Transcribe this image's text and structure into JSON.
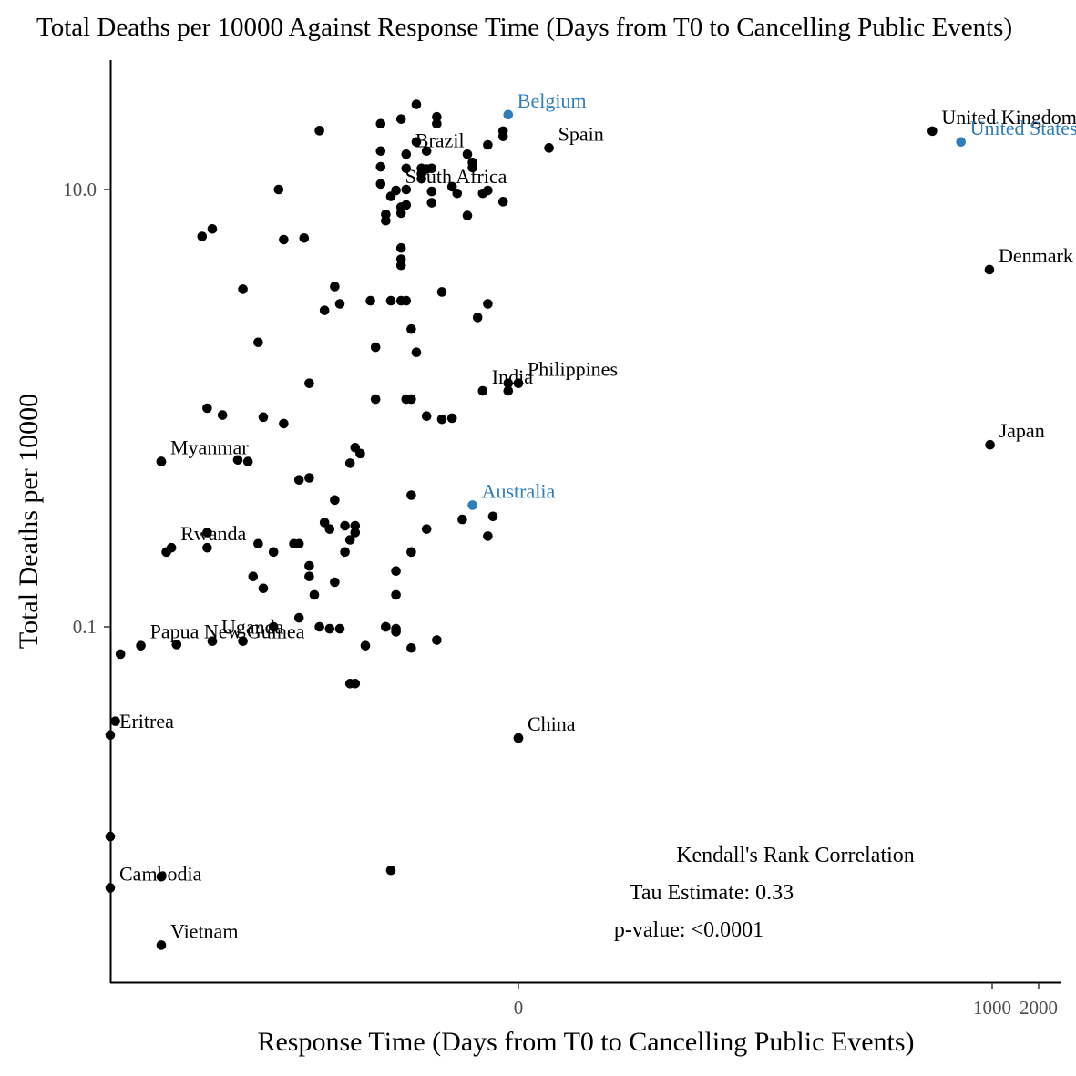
{
  "chart_data": {
    "type": "scatter",
    "title": "Total Deaths per 10000 Against Response Time (Days from T0 to Cancelling Public Events)",
    "xlabel": "Response Time (Days from T0 to Cancelling Public Events)",
    "ylabel": "Total Deaths per 10000",
    "x_scale": "pseudo-log",
    "y_scale": "log10",
    "x_tick_labels": [
      "0",
      "1000",
      "2000"
    ],
    "x_ticks": [
      0,
      1000,
      2000
    ],
    "y_tick_labels": [
      "10.0",
      "0.1"
    ],
    "y_ticks": [
      10.0,
      0.1
    ],
    "xlim": [
      -80,
      2100
    ],
    "ylim": [
      0.0012,
      45
    ],
    "grid": false,
    "legend": "none",
    "colors": {
      "default": "#000000",
      "highlight": "#2e7ebc"
    },
    "points": [
      {
        "x": -80,
        "y": 0.011
      },
      {
        "x": -79,
        "y": 0.037
      },
      {
        "x": -78,
        "y": 0.075
      },
      {
        "x": -70,
        "y": 0.57
      },
      {
        "x": -70,
        "y": 0.0072
      },
      {
        "x": -69,
        "y": 0.22
      },
      {
        "x": -67,
        "y": 0.083
      },
      {
        "x": -62,
        "y": 6.1
      },
      {
        "x": -61,
        "y": 0.27
      },
      {
        "x": -61,
        "y": 0.23
      },
      {
        "x": -61,
        "y": 1.0
      },
      {
        "x": -60,
        "y": 6.6
      },
      {
        "x": -58,
        "y": 0.93
      },
      {
        "x": -55,
        "y": 0.58
      },
      {
        "x": -54,
        "y": 3.5
      },
      {
        "x": -54,
        "y": 0.086
      },
      {
        "x": -53,
        "y": 0.57
      },
      {
        "x": -52,
        "y": 0.17
      },
      {
        "x": -51,
        "y": 2.0
      },
      {
        "x": -51,
        "y": 0.24
      },
      {
        "x": -50,
        "y": 0.91
      },
      {
        "x": -50,
        "y": 0.15
      },
      {
        "x": -48,
        "y": 0.22
      },
      {
        "x": -48,
        "y": 0.1
      },
      {
        "x": -47,
        "y": 10.0
      },
      {
        "x": -46,
        "y": 0.85
      },
      {
        "x": -46,
        "y": 5.9
      },
      {
        "x": -44,
        "y": 0.24
      },
      {
        "x": -43,
        "y": 0.47
      },
      {
        "x": -43,
        "y": 0.24
      },
      {
        "x": -43,
        "y": 0.11
      },
      {
        "x": -42,
        "y": 6.0
      },
      {
        "x": -41,
        "y": 1.3
      },
      {
        "x": -41,
        "y": 0.48
      },
      {
        "x": -41,
        "y": 0.19
      },
      {
        "x": -41,
        "y": 0.17
      },
      {
        "x": -40,
        "y": 0.14
      },
      {
        "x": -39,
        "y": 0.1
      },
      {
        "x": -39,
        "y": 18.6
      },
      {
        "x": -38,
        "y": 2.8
      },
      {
        "x": -38,
        "y": 0.3
      },
      {
        "x": -37,
        "y": 0.098
      },
      {
        "x": -37,
        "y": 0.28
      },
      {
        "x": -36,
        "y": 3.6
      },
      {
        "x": -36,
        "y": 0.38
      },
      {
        "x": -36,
        "y": 0.16
      },
      {
        "x": -35,
        "y": 3.0
      },
      {
        "x": -35,
        "y": 0.098
      },
      {
        "x": -34,
        "y": 0.29
      },
      {
        "x": -34,
        "y": 0.22
      },
      {
        "x": -33,
        "y": 0.56
      },
      {
        "x": -33,
        "y": 0.25
      },
      {
        "x": -33,
        "y": 0.055
      },
      {
        "x": -32,
        "y": 0.055
      },
      {
        "x": -32,
        "y": 0.29
      },
      {
        "x": -32,
        "y": 0.27
      },
      {
        "x": -32,
        "y": 0.66
      },
      {
        "x": -31,
        "y": 0.62
      },
      {
        "x": -30,
        "y": 0.082
      },
      {
        "x": -29,
        "y": 3.1
      },
      {
        "x": -28,
        "y": 1.1
      },
      {
        "x": -28,
        "y": 1.9
      },
      {
        "x": -27,
        "y": 20
      },
      {
        "x": -27,
        "y": 15
      },
      {
        "x": -27,
        "y": 12.7
      },
      {
        "x": -27,
        "y": 10.6
      },
      {
        "x": -26,
        "y": 7.2
      },
      {
        "x": -26,
        "y": 7.7
      },
      {
        "x": -26,
        "y": 0.1
      },
      {
        "x": -26,
        "y": 0.1
      },
      {
        "x": -25,
        "y": 3.1
      },
      {
        "x": -25,
        "y": 0.0077
      },
      {
        "x": -25,
        "y": 9.3
      },
      {
        "x": -24,
        "y": 0.18
      },
      {
        "x": -24,
        "y": 0.14
      },
      {
        "x": -24,
        "y": 0.095
      },
      {
        "x": -24,
        "y": 0.098
      },
      {
        "x": -23,
        "y": 7.8
      },
      {
        "x": -23,
        "y": 5.4
      },
      {
        "x": -23,
        "y": 4.8
      },
      {
        "x": -23,
        "y": 4.5
      },
      {
        "x": -23,
        "y": 3.1
      },
      {
        "x": -23,
        "y": 8.3
      },
      {
        "x": -23,
        "y": 21
      },
      {
        "x": -22,
        "y": 12.5
      },
      {
        "x": -22,
        "y": 8.5
      },
      {
        "x": -22,
        "y": 10.0
      },
      {
        "x": -22,
        "y": 3.1
      },
      {
        "x": -22,
        "y": 1.1
      },
      {
        "x": -21,
        "y": 1.1
      },
      {
        "x": -21,
        "y": 0.08
      },
      {
        "x": -21,
        "y": 0.4
      },
      {
        "x": -21,
        "y": 0.22
      },
      {
        "x": -21,
        "y": 2.3
      },
      {
        "x": -20,
        "y": 1.8
      },
      {
        "x": -20,
        "y": 24.5
      },
      {
        "x": -20,
        "y": 16.5
      },
      {
        "x": -19,
        "y": 12.5
      },
      {
        "x": -19,
        "y": 11.8
      },
      {
        "x": -19,
        "y": 11.2
      },
      {
        "x": -18,
        "y": 0.92
      },
      {
        "x": -18,
        "y": 0.28
      },
      {
        "x": -18,
        "y": 12.4
      },
      {
        "x": -18,
        "y": 15
      },
      {
        "x": -17,
        "y": 12.5
      },
      {
        "x": -17,
        "y": 9.8
      },
      {
        "x": -17,
        "y": 8.7
      },
      {
        "x": -16,
        "y": 0.087
      },
      {
        "x": -16,
        "y": 21.5
      },
      {
        "x": -16,
        "y": 20
      },
      {
        "x": -15,
        "y": 0.89
      },
      {
        "x": -15,
        "y": 3.4
      },
      {
        "x": -13,
        "y": 10.3
      },
      {
        "x": -13,
        "y": 0.9
      },
      {
        "x": -12,
        "y": 9.6
      },
      {
        "x": -11,
        "y": 0.31
      },
      {
        "x": -10,
        "y": 14.5
      },
      {
        "x": -10,
        "y": 7.6
      },
      {
        "x": -9,
        "y": 13.3
      },
      {
        "x": -9,
        "y": 12.6
      },
      {
        "x": -8,
        "y": 2.6
      },
      {
        "x": -7,
        "y": 9.6
      },
      {
        "x": -6,
        "y": 3.0
      },
      {
        "x": -6,
        "y": 16
      },
      {
        "x": -6,
        "y": 9.9
      },
      {
        "x": -6,
        "y": 0.26
      },
      {
        "x": -5,
        "y": 0.32
      },
      {
        "x": -3,
        "y": 8.8
      },
      {
        "x": -3,
        "y": 18.5
      },
      {
        "x": -3,
        "y": 17.5
      },
      {
        "x": -2,
        "y": 1.3
      },
      {
        "x": -2,
        "y": 1.2
      },
      {
        "x": 0,
        "y": 0.031
      },
      {
        "x": 0,
        "y": 1.3
      }
    ],
    "labeled_points": [
      {
        "label": "Belgium",
        "x": -2,
        "y": 22,
        "highlight": true
      },
      {
        "label": "Brazil",
        "x": -22,
        "y": 14.5,
        "highlight": false
      },
      {
        "label": "Spain",
        "x": 6,
        "y": 15.5,
        "highlight": false
      },
      {
        "label": "United Kingdom",
        "x": 100,
        "y": 18.5,
        "highlight": false
      },
      {
        "label": "United States",
        "x": 300,
        "y": 16.5,
        "highlight": true
      },
      {
        "label": "South Africa",
        "x": -24,
        "y": 9.9,
        "highlight": false
      },
      {
        "label": "Denmark",
        "x": 900,
        "y": 4.3,
        "highlight": false
      },
      {
        "label": "India",
        "x": -7,
        "y": 1.2,
        "highlight": false
      },
      {
        "label": "Philippines",
        "x": 0,
        "y": 1.3,
        "highlight": false
      },
      {
        "label": "Japan",
        "x": 920,
        "y": 0.68,
        "highlight": false
      },
      {
        "label": "Myanmar",
        "x": -70,
        "y": 0.57,
        "highlight": false
      },
      {
        "label": "Australia",
        "x": -9,
        "y": 0.36,
        "highlight": true
      },
      {
        "label": "Rwanda",
        "x": -68,
        "y": 0.23,
        "highlight": false
      },
      {
        "label": "Uganda",
        "x": -60,
        "y": 0.086,
        "highlight": false
      },
      {
        "label": "Papua New Guinea",
        "x": -74,
        "y": 0.082,
        "highlight": false
      },
      {
        "label": "China",
        "x": 0,
        "y": 0.031,
        "highlight": false
      },
      {
        "label": "Eritrea",
        "x": -80,
        "y": 0.032,
        "highlight": false
      },
      {
        "label": "Cambodia",
        "x": -80,
        "y": 0.0064,
        "highlight": false
      },
      {
        "label": "Vietnam",
        "x": -70,
        "y": 0.0035,
        "highlight": false
      }
    ],
    "annotation": {
      "line1": "Kendall's Rank Correlation",
      "line2": "Tau Estimate: 0.33",
      "line3": "p-value: <0.0001"
    }
  }
}
